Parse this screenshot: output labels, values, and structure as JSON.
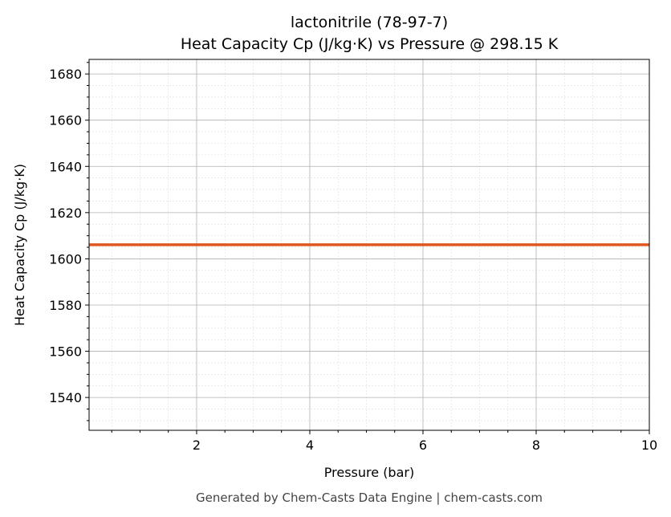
{
  "chart_data": {
    "type": "line",
    "title": "lactonitrile (78-97-7)",
    "subtitle": "Heat Capacity Cp (J/kg·K) vs Pressure @ 298.15 K",
    "xlabel": "Pressure (bar)",
    "ylabel": "Heat Capacity Cp (J/kg·K)",
    "xlim": [
      0.1,
      10
    ],
    "ylim": [
      1525.8,
      1686.3
    ],
    "xticks": [
      2,
      4,
      6,
      8,
      10
    ],
    "yticks": [
      1540,
      1560,
      1580,
      1600,
      1620,
      1640,
      1660,
      1680
    ],
    "grid": true,
    "series": [
      {
        "name": "Cp",
        "color": "#e0561f",
        "x": [
          0.1,
          10
        ],
        "y": [
          1606.1,
          1606.1
        ]
      }
    ]
  },
  "footer": "Generated by Chem-Casts Data Engine | chem-casts.com"
}
